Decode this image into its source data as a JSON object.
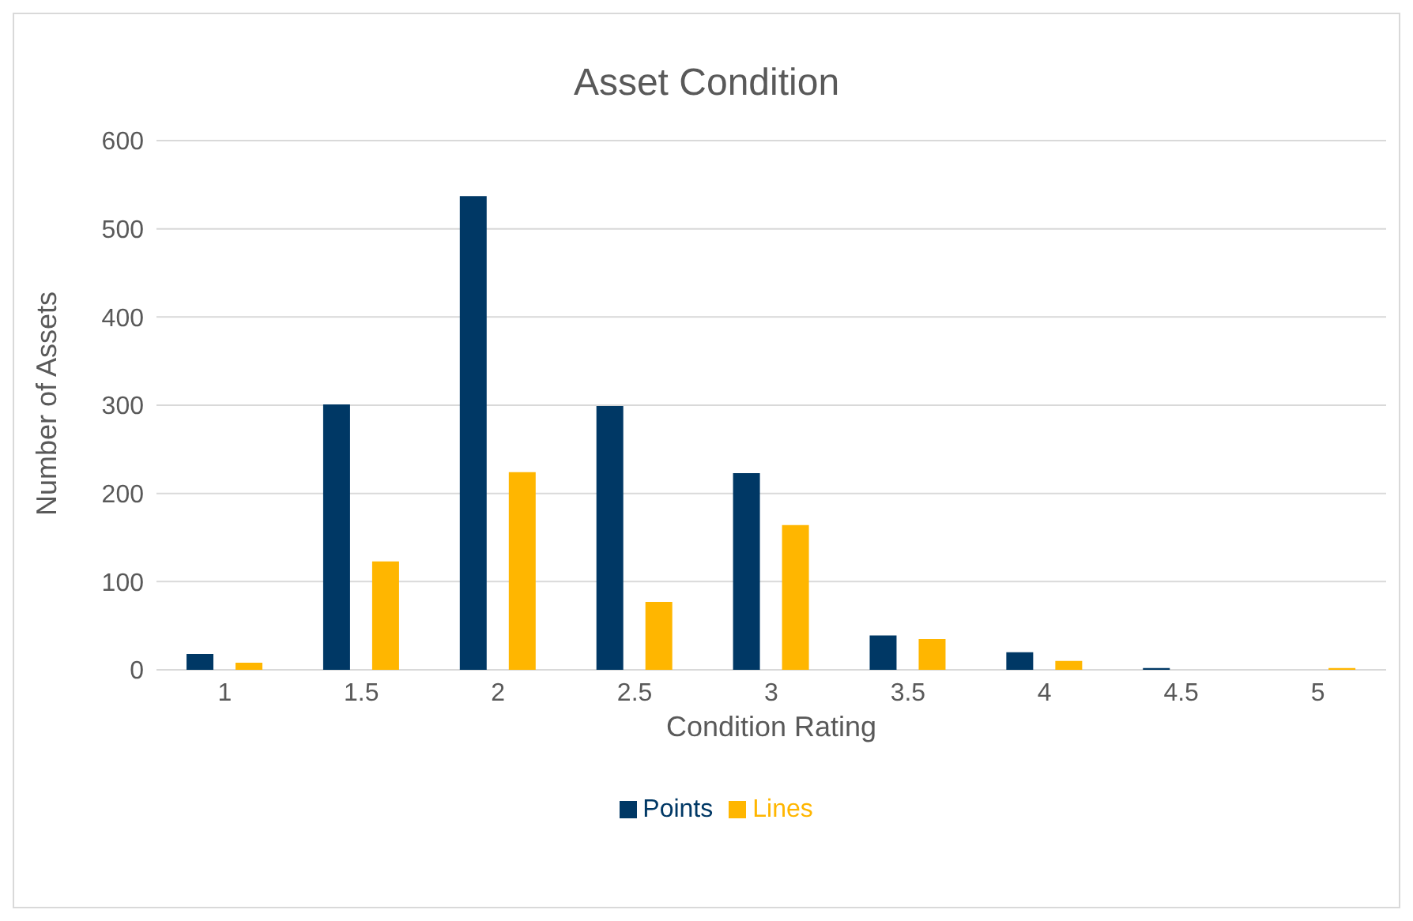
{
  "chart_data": {
    "type": "bar",
    "title": "Asset Condition",
    "xlabel": "Condition Rating",
    "ylabel": "Number of Assets",
    "categories": [
      "1",
      "1.5",
      "2",
      "2.5",
      "3",
      "3.5",
      "4",
      "4.5",
      "5"
    ],
    "series": [
      {
        "name": "Points",
        "color": "#003865",
        "values": [
          18,
          301,
          537,
          299,
          223,
          39,
          20,
          2,
          0
        ]
      },
      {
        "name": "Lines",
        "color": "#ffb600",
        "values": [
          8,
          123,
          224,
          77,
          164,
          35,
          10,
          0,
          2
        ]
      }
    ],
    "ylim": [
      0,
      600
    ],
    "yticks": [
      0,
      100,
      200,
      300,
      400,
      500,
      600
    ],
    "grid": "y",
    "legend": "bottom"
  }
}
